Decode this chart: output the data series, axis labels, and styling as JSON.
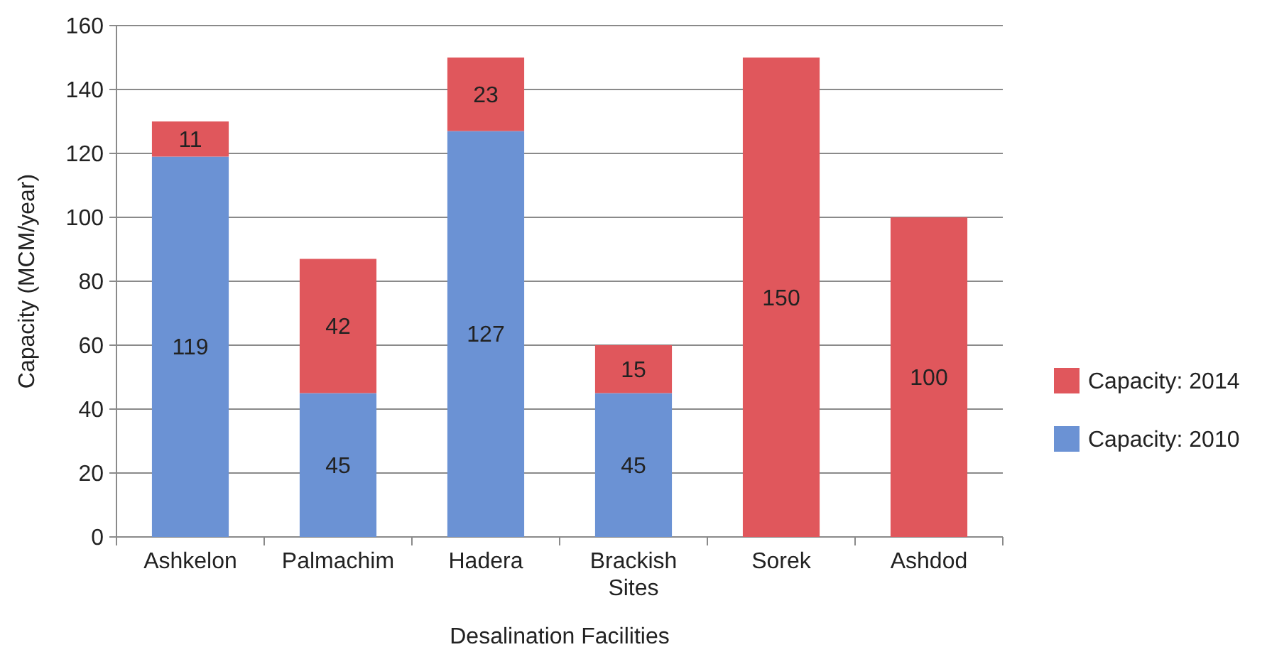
{
  "chart_data": {
    "type": "bar",
    "stacked": true,
    "xlabel": "Desalination Facilities",
    "ylabel": "Capacity (MCM/year)",
    "categories": [
      "Ashkelon",
      "Palmachim",
      "Hadera",
      "Brackish Sites",
      "Sorek",
      "Ashdod"
    ],
    "series": [
      {
        "name": "Capacity: 2010",
        "color": "#6b92d4",
        "values": [
          119,
          45,
          127,
          45,
          null,
          null
        ]
      },
      {
        "name": "Capacity: 2014",
        "color": "#e0575c",
        "values": [
          11,
          42,
          23,
          15,
          150,
          100
        ]
      }
    ],
    "ylim": [
      0,
      160
    ],
    "yticks": [
      0,
      20,
      40,
      60,
      80,
      100,
      120,
      140,
      160
    ],
    "grid": "y",
    "legend": "right",
    "data_labels": true
  }
}
